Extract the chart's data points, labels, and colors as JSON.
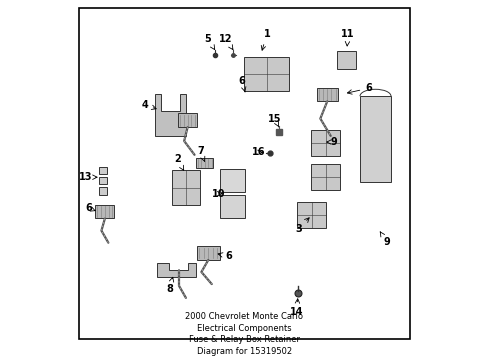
{
  "title": "2000 Chevrolet Monte Carlo",
  "subtitle": "Electrical Components",
  "sub2": "Fuse & Relay Box Retainer",
  "part_number": "Diagram for 15319502",
  "background_color": "#ffffff",
  "border_color": "#000000",
  "text_color": "#000000",
  "title_fontsize": 9,
  "label_fontsize": 8,
  "lw": 0.7,
  "ec": "#333333",
  "labels": [
    [
      1,
      0.565,
      0.905,
      0.548,
      0.848
    ],
    [
      2,
      0.305,
      0.542,
      0.325,
      0.508
    ],
    [
      3,
      0.657,
      0.34,
      0.695,
      0.38
    ],
    [
      4,
      0.21,
      0.7,
      0.254,
      0.685
    ],
    [
      5,
      0.393,
      0.892,
      0.415,
      0.858
    ],
    [
      6,
      0.493,
      0.768,
      0.502,
      0.736
    ],
    [
      6,
      0.86,
      0.748,
      0.788,
      0.732
    ],
    [
      6,
      0.048,
      0.4,
      0.069,
      0.392
    ],
    [
      6,
      0.455,
      0.26,
      0.413,
      0.27
    ],
    [
      7,
      0.372,
      0.565,
      0.385,
      0.534
    ],
    [
      8,
      0.282,
      0.165,
      0.295,
      0.21
    ],
    [
      9,
      0.76,
      0.592,
      0.736,
      0.592
    ],
    [
      9,
      0.913,
      0.302,
      0.888,
      0.34
    ],
    [
      10,
      0.425,
      0.442,
      0.445,
      0.442
    ],
    [
      11,
      0.8,
      0.904,
      0.797,
      0.86
    ],
    [
      12,
      0.445,
      0.892,
      0.468,
      0.858
    ],
    [
      13,
      0.04,
      0.49,
      0.075,
      0.49
    ],
    [
      14,
      0.652,
      0.098,
      0.655,
      0.148
    ],
    [
      15,
      0.588,
      0.658,
      0.6,
      0.635
    ],
    [
      16,
      0.542,
      0.562,
      0.562,
      0.562
    ]
  ]
}
